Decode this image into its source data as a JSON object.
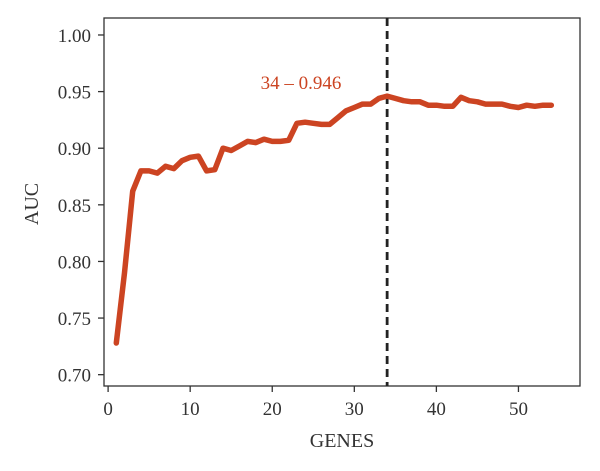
{
  "chart_data": {
    "type": "line",
    "title": "",
    "xlabel": "GENES",
    "ylabel": "AUC",
    "xlim": [
      -0.5,
      57.5
    ],
    "ylim": [
      0.69,
      1.015
    ],
    "xticks": [
      0,
      10,
      20,
      30,
      40,
      50
    ],
    "xtick_labels": [
      "0",
      "10",
      "20",
      "30",
      "40",
      "50"
    ],
    "yticks": [
      0.7,
      0.75,
      0.8,
      0.85,
      0.9,
      0.95,
      1.0
    ],
    "ytick_labels": [
      "0.70",
      "0.75",
      "0.80",
      "0.85",
      "0.90",
      "0.95",
      "1.00"
    ],
    "grid": false,
    "series": [
      {
        "color": "#cc4422",
        "x": [
          1,
          2,
          3,
          4,
          5,
          6,
          7,
          8,
          9,
          10,
          11,
          12,
          13,
          14,
          15,
          16,
          17,
          18,
          19,
          20,
          21,
          22,
          23,
          24,
          25,
          26,
          27,
          28,
          29,
          30,
          31,
          32,
          33,
          34,
          35,
          36,
          37,
          38,
          39,
          40,
          41,
          42,
          43,
          44,
          45,
          46,
          47,
          48,
          49,
          50,
          51,
          52,
          53,
          54
        ],
        "y": [
          0.728,
          0.79,
          0.862,
          0.88,
          0.88,
          0.878,
          0.884,
          0.882,
          0.889,
          0.892,
          0.893,
          0.88,
          0.881,
          0.9,
          0.898,
          0.902,
          0.906,
          0.905,
          0.908,
          0.906,
          0.906,
          0.907,
          0.922,
          0.923,
          0.922,
          0.921,
          0.921,
          0.927,
          0.933,
          0.936,
          0.939,
          0.939,
          0.944,
          0.946,
          0.944,
          0.942,
          0.941,
          0.941,
          0.938,
          0.938,
          0.937,
          0.937,
          0.945,
          0.942,
          0.941,
          0.939,
          0.939,
          0.939,
          0.937,
          0.936,
          0.938,
          0.937,
          0.938,
          0.938
        ]
      }
    ],
    "vline": {
      "x": 34,
      "style": "dashed",
      "color": "#222222"
    },
    "annotation": {
      "text": "34 – 0.946",
      "x": 23.5,
      "y": 0.9525,
      "color": "#cc4422"
    }
  }
}
